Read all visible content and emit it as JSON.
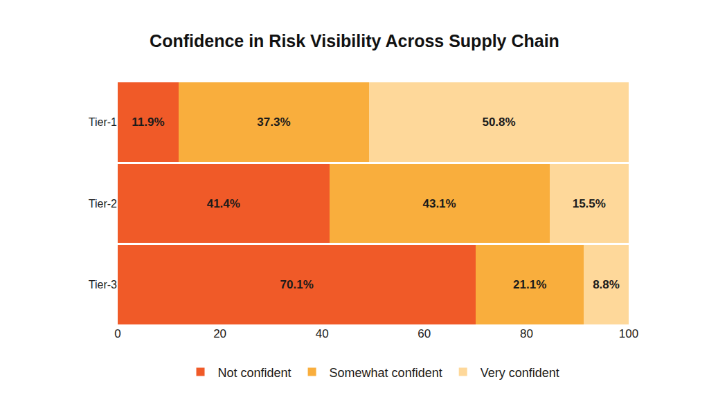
{
  "chart_data": {
    "type": "bar",
    "title": "Confidence in Risk Visibility Across Supply Chain",
    "orientation": "horizontal",
    "stacked": true,
    "data_labels": true,
    "categories": [
      "Tier-1",
      "Tier-2",
      "Tier-3"
    ],
    "series": [
      {
        "name": "Not confident",
        "color": "#f05a28",
        "values": [
          11.9,
          41.4,
          70.1
        ],
        "value_labels": [
          "11.9%",
          "41.4%",
          "70.1%"
        ]
      },
      {
        "name": "Somewhat confident",
        "color": "#f9ae3d",
        "values": [
          37.3,
          43.1,
          21.1
        ],
        "value_labels": [
          "37.3%",
          "43.1%",
          "21.1%"
        ]
      },
      {
        "name": "Very confident",
        "color": "#fed89a",
        "values": [
          50.8,
          15.5,
          8.8
        ],
        "value_labels": [
          "50.8%",
          "15.5%",
          "8.8%"
        ]
      }
    ],
    "xlim": [
      0,
      100
    ],
    "xticks": [
      0,
      20,
      40,
      60,
      80,
      100
    ],
    "grid": false,
    "legend": "bottom"
  }
}
